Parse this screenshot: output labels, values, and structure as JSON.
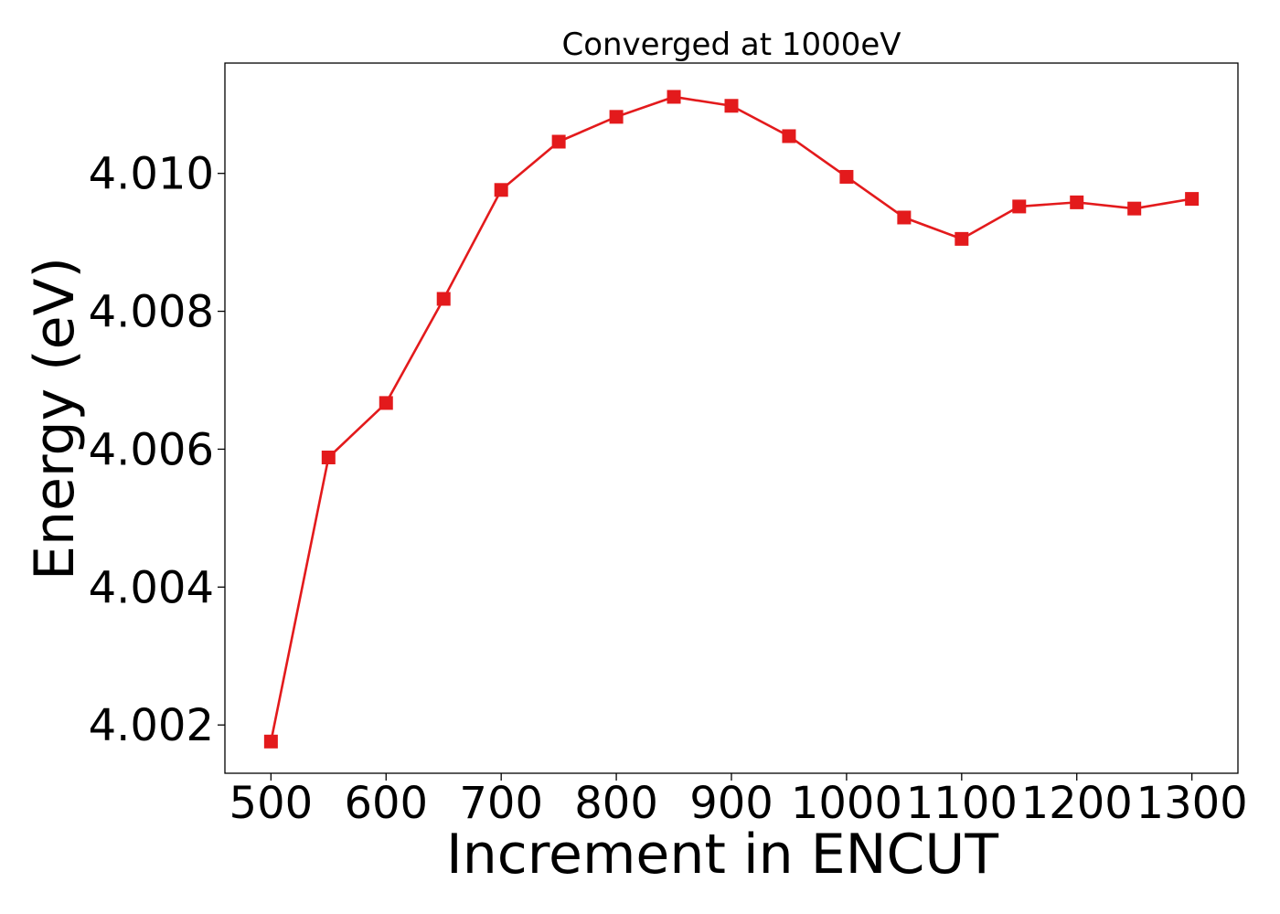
{
  "chart_data": {
    "type": "line",
    "title": "Converged at 1000eV",
    "xlabel": "Increment in ENCUT",
    "ylabel": "Energy (eV)",
    "xlim": [
      460,
      1340
    ],
    "ylim": [
      4.0013,
      4.0116
    ],
    "xticks": [
      500,
      600,
      700,
      800,
      900,
      1000,
      1100,
      1200,
      1300
    ],
    "yticks": [
      4.002,
      4.004,
      4.006,
      4.008,
      4.01
    ],
    "ytick_labels": [
      "4.002",
      "4.004",
      "4.006",
      "4.008",
      "4.010"
    ],
    "grid": false,
    "series": [
      {
        "color": "#e31a1c",
        "marker": "square",
        "x": [
          500,
          550,
          600,
          650,
          700,
          750,
          800,
          850,
          900,
          950,
          1000,
          1050,
          1100,
          1150,
          1200,
          1250,
          1300
        ],
        "y": [
          4.00176,
          4.00588,
          4.00667,
          4.00818,
          4.00976,
          4.01046,
          4.01082,
          4.01111,
          4.01098,
          4.01054,
          4.00995,
          4.00936,
          4.00905,
          4.00952,
          4.00958,
          4.00949,
          4.00963
        ]
      }
    ]
  }
}
